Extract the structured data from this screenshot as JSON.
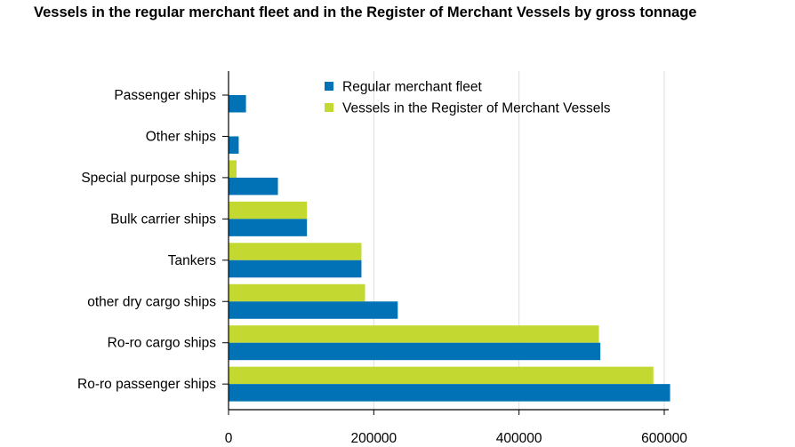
{
  "chart_data": {
    "type": "bar",
    "orientation": "horizontal",
    "title": "Vessels in the regular merchant fleet and in the Register of Merchant Vessels by gross tonnage",
    "categories": [
      "Passenger ships",
      "Other ships",
      "Special purpose ships",
      "Bulk carrier ships",
      "Tankers",
      "other dry cargo ships",
      "Ro-ro cargo ships",
      "Ro-ro passenger ships"
    ],
    "series": [
      {
        "name": "Vessels in the Register of Merchant Vessels",
        "color": "#c3d932",
        "values": [
          null,
          null,
          11000,
          108000,
          183000,
          188000,
          510000,
          585000
        ]
      },
      {
        "name": "Regular merchant fleet",
        "color": "#0072b5",
        "values": [
          24000,
          14000,
          68000,
          108000,
          183000,
          233000,
          512000,
          608000
        ]
      }
    ],
    "legend_order": [
      1,
      0
    ],
    "legend_position": "top",
    "xlim": [
      0,
      620000
    ],
    "x_ticks": [
      {
        "value": 0,
        "label": "0"
      },
      {
        "value": 200000,
        "label": "200000"
      },
      {
        "value": 400000,
        "label": "400000"
      },
      {
        "value": 600000,
        "label": "600000"
      }
    ],
    "grid": "vertical",
    "xlabel": "",
    "ylabel": ""
  }
}
